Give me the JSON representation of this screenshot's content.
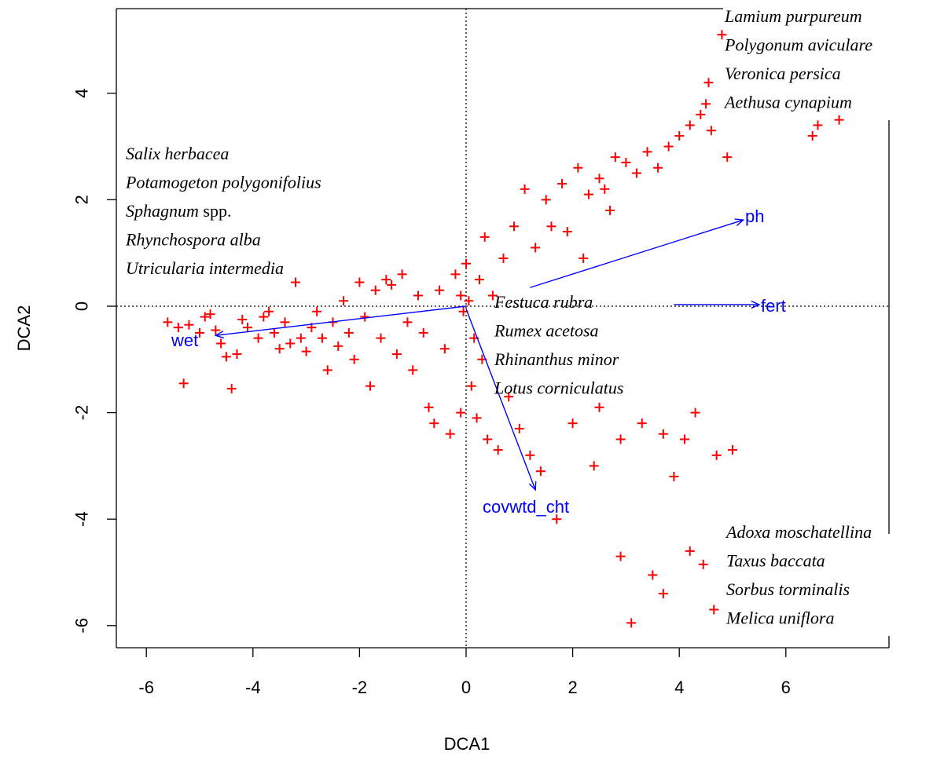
{
  "chart_data": {
    "type": "scatter",
    "xlabel": "DCA1",
    "ylabel": "DCA2",
    "xlim": [
      -6.4,
      7.9
    ],
    "ylim": [
      -6.4,
      5.6
    ],
    "xticks": [
      -6,
      -4,
      -2,
      0,
      2,
      4,
      6
    ],
    "yticks": [
      -6,
      -4,
      -2,
      0,
      2,
      4
    ],
    "reference_lines": {
      "x": 0,
      "y": 0,
      "style": "dotted"
    },
    "point_color": "#ff0000",
    "vector_color": "#0000ff",
    "vectors": [
      {
        "name": "ph",
        "from": [
          1.2,
          0.35
        ],
        "to": [
          5.2,
          1.62
        ]
      },
      {
        "name": "fert",
        "from": [
          3.9,
          0.03
        ],
        "to": [
          5.5,
          0.03
        ]
      },
      {
        "name": "wet",
        "from": [
          0.0,
          0.0
        ],
        "to": [
          -4.7,
          -0.55
        ]
      },
      {
        "name": "covwtd_cht",
        "from": [
          0.0,
          -0.05
        ],
        "to": [
          1.3,
          -3.45
        ]
      }
    ],
    "species_groups": [
      {
        "position": "top-right",
        "items": [
          {
            "text": "Lamium purpureum"
          },
          {
            "text": "Polygonum aviculare"
          },
          {
            "text": "Veronica persica"
          },
          {
            "text": "Aethusa cynapium"
          }
        ]
      },
      {
        "position": "upper-left",
        "items": [
          {
            "text": "Salix herbacea"
          },
          {
            "text": "Potamogeton polygonifolius"
          },
          {
            "text": "Sphagnum",
            "suffix": "spp."
          },
          {
            "text": "Rhynchospora alba"
          },
          {
            "text": "Utricularia intermedia"
          }
        ]
      },
      {
        "position": "center",
        "items": [
          {
            "text": "Festuca rubra"
          },
          {
            "text": "Rumex acetosa"
          },
          {
            "text": "Rhinanthus minor"
          },
          {
            "text": "Lotus corniculatus"
          }
        ]
      },
      {
        "position": "bottom-right",
        "items": [
          {
            "text": "Adoxa moschatellina"
          },
          {
            "text": "Taxus baccata"
          },
          {
            "text": "Sorbus torminalis"
          },
          {
            "text": "Melica uniflora"
          }
        ]
      }
    ],
    "series": [
      {
        "points": [
          [
            -5.6,
            -0.3
          ],
          [
            -5.4,
            -0.4
          ],
          [
            -5.3,
            -1.45
          ],
          [
            -5.2,
            -0.35
          ],
          [
            -5.0,
            -0.5
          ],
          [
            -4.9,
            -0.2
          ],
          [
            -4.8,
            -0.15
          ],
          [
            -4.7,
            -0.45
          ],
          [
            -4.6,
            -0.7
          ],
          [
            -4.5,
            -0.95
          ],
          [
            -4.4,
            -1.55
          ],
          [
            -4.3,
            -0.9
          ],
          [
            -4.2,
            -0.25
          ],
          [
            -4.1,
            -0.4
          ],
          [
            -3.9,
            -0.6
          ],
          [
            -3.8,
            -0.2
          ],
          [
            -3.7,
            -0.1
          ],
          [
            -3.6,
            -0.5
          ],
          [
            -3.5,
            -0.8
          ],
          [
            -3.4,
            -0.3
          ],
          [
            -3.3,
            -0.7
          ],
          [
            -3.2,
            0.45
          ],
          [
            -3.1,
            -0.6
          ],
          [
            -3.0,
            -0.85
          ],
          [
            -2.9,
            -0.4
          ],
          [
            -2.8,
            -0.1
          ],
          [
            -2.7,
            -0.6
          ],
          [
            -2.6,
            -1.2
          ],
          [
            -2.5,
            -0.3
          ],
          [
            -2.4,
            -0.75
          ],
          [
            -2.3,
            0.1
          ],
          [
            -2.2,
            -0.5
          ],
          [
            -2.1,
            -1.0
          ],
          [
            -2.0,
            0.45
          ],
          [
            -1.9,
            -0.2
          ],
          [
            -1.8,
            -1.5
          ],
          [
            -1.7,
            0.3
          ],
          [
            -1.6,
            -0.6
          ],
          [
            -1.5,
            0.5
          ],
          [
            -1.4,
            0.4
          ],
          [
            -1.3,
            -0.9
          ],
          [
            -1.2,
            0.6
          ],
          [
            -1.1,
            -0.3
          ],
          [
            -1.0,
            -1.2
          ],
          [
            -0.9,
            0.2
          ],
          [
            -0.8,
            -0.5
          ],
          [
            -0.7,
            -1.9
          ],
          [
            -0.6,
            -2.2
          ],
          [
            -0.5,
            0.3
          ],
          [
            -0.4,
            -0.8
          ],
          [
            -0.3,
            -2.4
          ],
          [
            -0.2,
            0.6
          ],
          [
            -0.1,
            -2.0
          ],
          [
            0.0,
            0.8
          ],
          [
            0.1,
            -1.5
          ],
          [
            0.15,
            -0.6
          ],
          [
            0.2,
            -2.1
          ],
          [
            0.25,
            0.5
          ],
          [
            0.3,
            -1.0
          ],
          [
            0.35,
            1.3
          ],
          [
            0.4,
            -2.5
          ],
          [
            0.5,
            0.2
          ],
          [
            0.6,
            -2.7
          ],
          [
            0.7,
            0.9
          ],
          [
            0.8,
            -1.7
          ],
          [
            0.9,
            1.5
          ],
          [
            1.0,
            -2.3
          ],
          [
            1.1,
            2.2
          ],
          [
            1.2,
            -2.8
          ],
          [
            1.3,
            1.1
          ],
          [
            1.4,
            -3.1
          ],
          [
            1.5,
            2.0
          ],
          [
            1.6,
            1.5
          ],
          [
            1.7,
            -4.0
          ],
          [
            1.8,
            2.3
          ],
          [
            1.9,
            1.4
          ],
          [
            2.0,
            -2.2
          ],
          [
            2.1,
            2.6
          ],
          [
            2.2,
            0.9
          ],
          [
            2.3,
            2.1
          ],
          [
            2.4,
            -3.0
          ],
          [
            2.5,
            2.4
          ],
          [
            2.6,
            2.2
          ],
          [
            2.7,
            1.8
          ],
          [
            2.8,
            2.8
          ],
          [
            2.9,
            -2.5
          ],
          [
            3.0,
            2.7
          ],
          [
            3.1,
            -5.95
          ],
          [
            3.2,
            2.5
          ],
          [
            3.3,
            -2.2
          ],
          [
            3.4,
            2.9
          ],
          [
            3.5,
            -5.05
          ],
          [
            3.6,
            2.6
          ],
          [
            3.7,
            -2.4
          ],
          [
            3.8,
            3.0
          ],
          [
            3.9,
            -3.2
          ],
          [
            4.0,
            3.2
          ],
          [
            4.1,
            -2.5
          ],
          [
            4.2,
            3.4
          ],
          [
            4.3,
            -2.0
          ],
          [
            4.4,
            3.6
          ],
          [
            4.45,
            -4.85
          ],
          [
            4.5,
            3.8
          ],
          [
            4.55,
            4.2
          ],
          [
            4.6,
            3.3
          ],
          [
            4.65,
            -5.7
          ],
          [
            4.7,
            -2.8
          ],
          [
            4.8,
            5.1
          ],
          [
            4.9,
            2.8
          ],
          [
            5.0,
            -2.7
          ],
          [
            6.5,
            3.2
          ],
          [
            6.6,
            3.4
          ],
          [
            7.0,
            3.5
          ],
          [
            -0.1,
            0.2
          ],
          [
            0.05,
            0.1
          ],
          [
            -0.05,
            -0.1
          ],
          [
            2.5,
            -1.9
          ],
          [
            2.9,
            -4.7
          ],
          [
            3.7,
            -5.4
          ],
          [
            4.2,
            -4.6
          ]
        ]
      }
    ]
  }
}
